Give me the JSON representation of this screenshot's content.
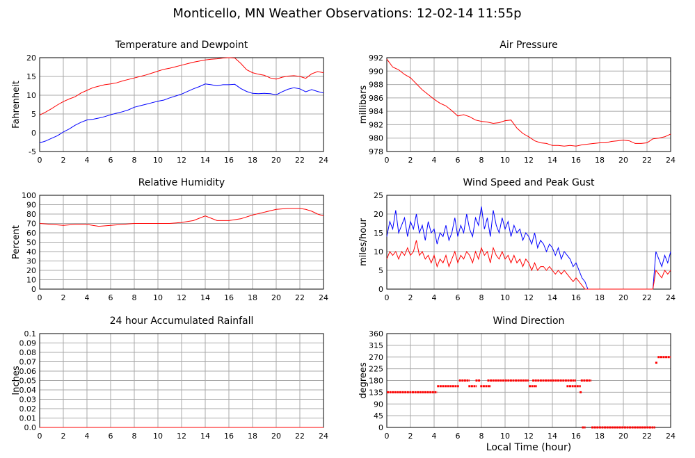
{
  "title": "Monticello, MN Weather Observations: 12-02-14 11:55p",
  "x_axis_label": "Local Time (hour)",
  "colors": {
    "red": "#ff0000",
    "blue": "#0000ff",
    "grid": "#a8a8a8"
  },
  "chart_data": [
    {
      "id": "temp",
      "type": "line",
      "title": "Temperature and Dewpoint",
      "ylabel": "Fahrenheit",
      "xlim": [
        0,
        24
      ],
      "ylim": [
        -5,
        20
      ],
      "xticks": [
        0,
        2,
        4,
        6,
        8,
        10,
        12,
        14,
        16,
        18,
        20,
        22,
        24
      ],
      "yticks": [
        -5,
        0,
        5,
        10,
        15,
        20
      ],
      "yticklabels": [
        "-5",
        "0",
        "5",
        "10",
        "15",
        "20"
      ],
      "series": [
        {
          "color": "red",
          "style": "line",
          "x": [
            0,
            0.5,
            1,
            1.5,
            2,
            2.5,
            3,
            3.5,
            4,
            4.5,
            5,
            5.5,
            6,
            6.5,
            7,
            7.5,
            8,
            8.5,
            9,
            9.5,
            10,
            10.5,
            11,
            11.5,
            12,
            12.5,
            13,
            13.5,
            14,
            14.5,
            15,
            15.5,
            16,
            16.5,
            17,
            17.5,
            18,
            18.5,
            19,
            19.5,
            20,
            20.5,
            21,
            21.5,
            22,
            22.5,
            23,
            23.5,
            24
          ],
          "y": [
            4.7,
            5.5,
            6.4,
            7.4,
            8.3,
            9.0,
            9.6,
            10.6,
            11.3,
            12.0,
            12.4,
            12.8,
            13.0,
            13.3,
            13.8,
            14.2,
            14.6,
            15.0,
            15.4,
            15.9,
            16.4,
            16.9,
            17.2,
            17.6,
            18.0,
            18.4,
            18.8,
            19.1,
            19.4,
            19.6,
            19.7,
            19.9,
            20.0,
            19.9,
            18.5,
            16.8,
            16.0,
            15.6,
            15.3,
            14.6,
            14.3,
            14.8,
            15.1,
            15.2,
            15.0,
            14.5,
            15.7,
            16.3,
            16.0
          ]
        },
        {
          "color": "blue",
          "style": "line",
          "x": [
            0,
            0.5,
            1,
            1.5,
            2,
            2.5,
            3,
            3.5,
            4,
            4.5,
            5,
            5.5,
            6,
            6.5,
            7,
            7.5,
            8,
            8.5,
            9,
            9.5,
            10,
            10.5,
            11,
            11.5,
            12,
            12.5,
            13,
            13.5,
            14,
            14.5,
            15,
            15.5,
            16,
            16.5,
            17,
            17.5,
            18,
            18.5,
            19,
            19.5,
            20,
            20.5,
            21,
            21.5,
            22,
            22.5,
            23,
            23.5,
            24
          ],
          "y": [
            -2.7,
            -2.2,
            -1.5,
            -0.8,
            0.2,
            1.0,
            2.0,
            2.8,
            3.4,
            3.6,
            3.9,
            4.3,
            4.8,
            5.2,
            5.6,
            6.1,
            6.8,
            7.2,
            7.6,
            8.0,
            8.4,
            8.7,
            9.3,
            9.8,
            10.3,
            11.0,
            11.7,
            12.3,
            13.0,
            12.8,
            12.5,
            12.8,
            12.8,
            12.9,
            11.8,
            11.0,
            10.5,
            10.4,
            10.5,
            10.4,
            10.1,
            10.9,
            11.6,
            12.0,
            11.7,
            10.9,
            11.5,
            11.0,
            10.6
          ]
        }
      ]
    },
    {
      "id": "pressure",
      "type": "line",
      "title": "Air Pressure",
      "ylabel": "millibars",
      "xlim": [
        0,
        24
      ],
      "ylim": [
        978,
        992
      ],
      "xticks": [
        0,
        2,
        4,
        6,
        8,
        10,
        12,
        14,
        16,
        18,
        20,
        22,
        24
      ],
      "yticks": [
        978,
        980,
        982,
        984,
        986,
        988,
        990,
        992
      ],
      "yticklabels": [
        "978",
        "980",
        "982",
        "984",
        "986",
        "988",
        "990",
        "992"
      ],
      "series": [
        {
          "color": "red",
          "style": "line",
          "x": [
            0,
            0.5,
            1,
            1.5,
            2,
            2.5,
            3,
            3.5,
            4,
            4.5,
            5,
            5.5,
            6,
            6.5,
            7,
            7.5,
            8,
            8.5,
            9,
            9.5,
            10,
            10.5,
            11,
            11.5,
            12,
            12.5,
            13,
            13.5,
            14,
            14.5,
            15,
            15.5,
            16,
            16.5,
            17,
            17.5,
            18,
            18.5,
            19,
            19.5,
            20,
            20.5,
            21,
            21.5,
            22,
            22.5,
            23,
            23.5,
            24
          ],
          "y": [
            991.8,
            990.6,
            990.2,
            989.5,
            989.0,
            988.1,
            987.2,
            986.5,
            985.8,
            985.2,
            984.8,
            984.1,
            983.3,
            983.5,
            983.2,
            982.7,
            982.5,
            982.4,
            982.2,
            982.3,
            982.6,
            982.7,
            981.5,
            980.7,
            980.2,
            979.6,
            979.3,
            979.2,
            978.9,
            978.9,
            978.8,
            978.9,
            978.8,
            979.0,
            979.1,
            979.2,
            979.3,
            979.3,
            979.5,
            979.6,
            979.7,
            979.6,
            979.2,
            979.2,
            979.3,
            979.9,
            980.0,
            980.2,
            980.6
          ]
        }
      ]
    },
    {
      "id": "humidity",
      "type": "line",
      "title": "Relative Humidity",
      "ylabel": "Percent",
      "xlim": [
        0,
        24
      ],
      "ylim": [
        0,
        100
      ],
      "xticks": [
        0,
        2,
        4,
        6,
        8,
        10,
        12,
        14,
        16,
        18,
        20,
        22,
        24
      ],
      "yticks": [
        0,
        10,
        20,
        30,
        40,
        50,
        60,
        70,
        80,
        90,
        100
      ],
      "yticklabels": [
        "0",
        "10",
        "20",
        "30",
        "40",
        "50",
        "60",
        "70",
        "80",
        "90",
        "100"
      ],
      "series": [
        {
          "color": "red",
          "style": "line",
          "x": [
            0,
            1,
            2,
            3,
            4,
            5,
            6,
            7,
            8,
            9,
            10,
            11,
            12,
            13,
            14,
            15,
            16,
            17,
            18,
            19,
            20,
            21,
            22,
            22.5,
            23,
            23.5,
            24
          ],
          "y": [
            70,
            69,
            68,
            69,
            69,
            67,
            68,
            69,
            70,
            70,
            70,
            70,
            71,
            73,
            78,
            73,
            73,
            75,
            79,
            82,
            85,
            86,
            86,
            85,
            83,
            80,
            78
          ]
        }
      ]
    },
    {
      "id": "wind",
      "type": "line",
      "title": "Wind Speed and Peak Gust",
      "ylabel": "miles/hour",
      "xlim": [
        0,
        24
      ],
      "ylim": [
        0,
        25
      ],
      "xticks": [
        0,
        2,
        4,
        6,
        8,
        10,
        12,
        14,
        16,
        18,
        20,
        22,
        24
      ],
      "yticks": [
        0,
        5,
        10,
        15,
        20,
        25
      ],
      "yticklabels": [
        "0",
        "5",
        "10",
        "15",
        "20",
        "25"
      ],
      "series": [
        {
          "color": "blue",
          "style": "line",
          "x": [
            0,
            0.25,
            0.5,
            0.75,
            1,
            1.25,
            1.5,
            1.75,
            2,
            2.25,
            2.5,
            2.75,
            3,
            3.25,
            3.5,
            3.75,
            4,
            4.25,
            4.5,
            4.75,
            5,
            5.25,
            5.5,
            5.75,
            6,
            6.25,
            6.5,
            6.75,
            7,
            7.25,
            7.5,
            7.75,
            8,
            8.25,
            8.5,
            8.75,
            9,
            9.25,
            9.5,
            9.75,
            10,
            10.25,
            10.5,
            10.75,
            11,
            11.25,
            11.5,
            11.75,
            12,
            12.25,
            12.5,
            12.75,
            13,
            13.25,
            13.5,
            13.75,
            14,
            14.25,
            14.5,
            14.75,
            15,
            15.25,
            15.5,
            15.75,
            16,
            16.25,
            16.5,
            16.75,
            17,
            17.25,
            22.5,
            22.75,
            23,
            23.25,
            23.5,
            23.75,
            24
          ],
          "y": [
            14,
            18,
            16,
            21,
            15,
            17,
            19,
            14,
            18,
            16,
            20,
            15,
            17,
            13,
            18,
            15,
            16,
            12,
            15,
            14,
            17,
            13,
            15,
            19,
            14,
            17,
            15,
            20,
            16,
            14,
            19,
            17,
            22,
            16,
            19,
            14,
            21,
            17,
            15,
            19,
            16,
            18,
            14,
            17,
            15,
            16,
            13,
            15,
            14,
            12,
            15,
            11,
            13,
            12,
            10,
            12,
            11,
            9,
            11,
            8,
            10,
            9,
            8,
            6,
            7,
            5,
            3,
            2,
            0,
            0,
            0,
            10,
            8,
            6,
            9,
            7,
            10
          ],
          "note": ""
        },
        {
          "color": "red",
          "style": "line",
          "x": [
            0,
            0.25,
            0.5,
            0.75,
            1,
            1.25,
            1.5,
            1.75,
            2,
            2.25,
            2.5,
            2.75,
            3,
            3.25,
            3.5,
            3.75,
            4,
            4.25,
            4.5,
            4.75,
            5,
            5.25,
            5.5,
            5.75,
            6,
            6.25,
            6.5,
            6.75,
            7,
            7.25,
            7.5,
            7.75,
            8,
            8.25,
            8.5,
            8.75,
            9,
            9.25,
            9.5,
            9.75,
            10,
            10.25,
            10.5,
            10.75,
            11,
            11.25,
            11.5,
            11.75,
            12,
            12.25,
            12.5,
            12.75,
            13,
            13.25,
            13.5,
            13.75,
            14,
            14.25,
            14.5,
            14.75,
            15,
            15.25,
            15.5,
            15.75,
            16,
            16.25,
            16.5,
            16.75,
            17,
            17.25,
            22.5,
            22.75,
            23,
            23.25,
            23.5,
            23.75,
            24
          ],
          "y": [
            8,
            10,
            9,
            10,
            8,
            10,
            9,
            11,
            9,
            10,
            13,
            9,
            10,
            8,
            9,
            7,
            9,
            6,
            8,
            7,
            9,
            6,
            8,
            10,
            7,
            9,
            8,
            10,
            9,
            7,
            10,
            8,
            11,
            9,
            10,
            7,
            11,
            9,
            8,
            10,
            8,
            9,
            7,
            9,
            7,
            8,
            6,
            8,
            7,
            5,
            7,
            5,
            6,
            6,
            5,
            6,
            5,
            4,
            5,
            4,
            5,
            4,
            3,
            2,
            3,
            2,
            1,
            0,
            0,
            0,
            0,
            5,
            4,
            3,
            5,
            4,
            5
          ]
        }
      ]
    },
    {
      "id": "rain",
      "type": "line",
      "title": "24 hour Accumulated Rainfall",
      "ylabel": "Inches",
      "xlim": [
        0,
        24
      ],
      "ylim": [
        0,
        0.1
      ],
      "xticks": [
        0,
        2,
        4,
        6,
        8,
        10,
        12,
        14,
        16,
        18,
        20,
        22,
        24
      ],
      "yticks": [
        0,
        0.01,
        0.02,
        0.03,
        0.04,
        0.05,
        0.06,
        0.07,
        0.08,
        0.09,
        0.1
      ],
      "yticklabels": [
        "0.0",
        "0.01",
        "0.02",
        "0.03",
        "0.04",
        "0.05",
        "0.06",
        "0.07",
        "0.08",
        "0.09",
        "0.1"
      ],
      "series": [
        {
          "color": "red",
          "style": "line",
          "x": [
            0,
            24
          ],
          "y": [
            0,
            0
          ]
        }
      ]
    },
    {
      "id": "direction",
      "type": "scatter",
      "title": "Wind Direction",
      "ylabel": "degrees",
      "xlim": [
        0,
        24
      ],
      "ylim": [
        0,
        360
      ],
      "xticks": [
        0,
        2,
        4,
        6,
        8,
        10,
        12,
        14,
        16,
        18,
        20,
        22,
        24
      ],
      "yticks": [
        0,
        45,
        90,
        135,
        180,
        225,
        270,
        315,
        360
      ],
      "yticklabels": [
        "0",
        "45",
        "90",
        "135",
        "180",
        "225",
        "270",
        "315",
        "360"
      ],
      "series": [
        {
          "color": "red",
          "style": "segments",
          "segments": [
            {
              "x0": 0,
              "x1": 4.25,
              "y": 135
            },
            {
              "x0": 4.25,
              "x1": 6.1,
              "y": 158
            },
            {
              "x0": 6.1,
              "x1": 7.0,
              "y": 180
            },
            {
              "x0": 6.9,
              "x1": 7.6,
              "y": 158
            },
            {
              "x0": 7.5,
              "x1": 7.9,
              "y": 180
            },
            {
              "x0": 7.9,
              "x1": 8.8,
              "y": 158
            },
            {
              "x0": 8.5,
              "x1": 12.0,
              "y": 180
            },
            {
              "x0": 12.0,
              "x1": 12.7,
              "y": 158
            },
            {
              "x0": 12.3,
              "x1": 16.0,
              "y": 180
            },
            {
              "x0": 15.2,
              "x1": 16.4,
              "y": 158
            },
            {
              "x0": 16.3,
              "x1": 16.5,
              "y": 135
            },
            {
              "x0": 16.4,
              "x1": 17.3,
              "y": 180
            },
            {
              "x0": 16.5,
              "x1": 16.8,
              "y": 0
            },
            {
              "x0": 17.3,
              "x1": 22.7,
              "y": 0
            },
            {
              "x0": 22.7,
              "x1": 22.9,
              "y": 248
            },
            {
              "x0": 22.9,
              "x1": 24.0,
              "y": 270
            }
          ]
        }
      ]
    }
  ]
}
